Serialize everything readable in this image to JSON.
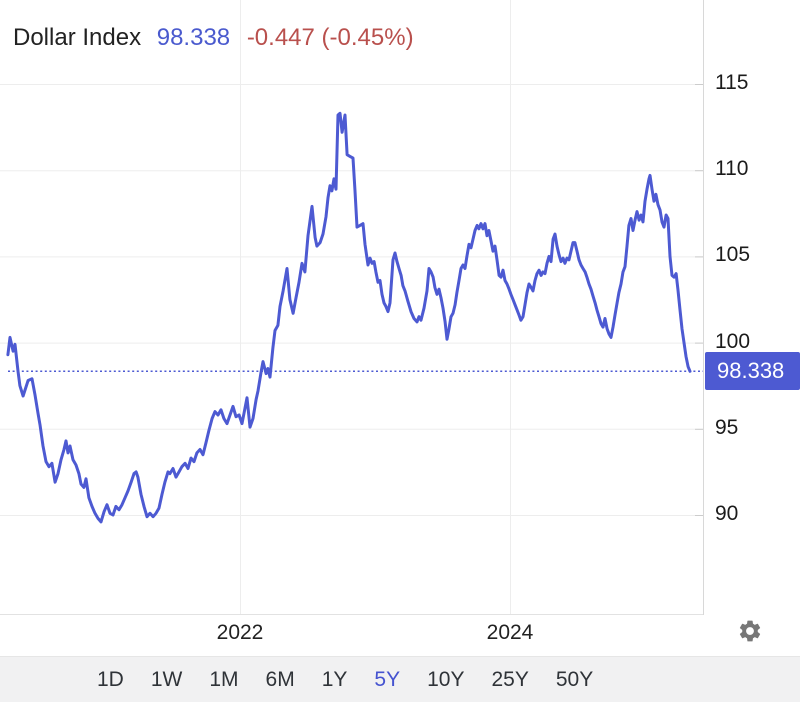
{
  "header": {
    "title": "Dollar Index",
    "last_price": "98.338",
    "change_text": "-0.447 (-0.45%)"
  },
  "colors": {
    "accent_blue": "#4d5ad2",
    "header_price_blue": "#4a5ace",
    "change_red": "#b9504d",
    "gridline": "#ededed",
    "axis_line": "#d8d8d8",
    "tick_mark": "#cccccc",
    "bottom_border": "#e2e2e2",
    "toolbar_bg": "#f1f1f2",
    "text_dark": "#222222",
    "badge_bg": "#4d5ad2",
    "badge_text": "#ffffff",
    "gear_gray": "#777777"
  },
  "chart_data": {
    "type": "line",
    "title": "Dollar Index",
    "series_name": "Dollar Index",
    "x_unit": "decimal_year",
    "grid": true,
    "legend": "none",
    "y_axis_side": "right",
    "xlim": [
      2020.22,
      2025.45
    ],
    "ylim": [
      84.2,
      119.9
    ],
    "x_ticks": [
      {
        "label": "2022",
        "year": 2022
      },
      {
        "label": "2024",
        "year": 2024
      }
    ],
    "y_ticks": [
      115,
      110,
      105,
      100,
      95,
      90
    ],
    "current_value": 98.338,
    "current_label": "98.338",
    "points": [
      [
        2020.281,
        99.3
      ],
      [
        2020.296,
        100.3
      ],
      [
        2020.319,
        99.5
      ],
      [
        2020.333,
        99.9
      ],
      [
        2020.356,
        98.3
      ],
      [
        2020.37,
        97.5
      ],
      [
        2020.393,
        96.9
      ],
      [
        2020.43,
        97.8
      ],
      [
        2020.459,
        97.9
      ],
      [
        2020.481,
        97.0
      ],
      [
        2020.504,
        95.9
      ],
      [
        2020.519,
        95.2
      ],
      [
        2020.541,
        94.0
      ],
      [
        2020.563,
        93.1
      ],
      [
        2020.585,
        92.8
      ],
      [
        2020.607,
        93.0
      ],
      [
        2020.63,
        91.9
      ],
      [
        2020.652,
        92.4
      ],
      [
        2020.674,
        93.2
      ],
      [
        2020.696,
        93.8
      ],
      [
        2020.711,
        94.3
      ],
      [
        2020.726,
        93.6
      ],
      [
        2020.741,
        94.0
      ],
      [
        2020.763,
        93.2
      ],
      [
        2020.785,
        92.9
      ],
      [
        2020.807,
        92.4
      ],
      [
        2020.822,
        91.8
      ],
      [
        2020.844,
        91.6
      ],
      [
        2020.859,
        92.1
      ],
      [
        2020.881,
        91.0
      ],
      [
        2020.904,
        90.5
      ],
      [
        2020.926,
        90.1
      ],
      [
        2020.948,
        89.8
      ],
      [
        2020.97,
        89.6
      ],
      [
        2020.993,
        90.2
      ],
      [
        2021.015,
        90.6
      ],
      [
        2021.037,
        90.1
      ],
      [
        2021.059,
        90.0
      ],
      [
        2021.081,
        90.5
      ],
      [
        2021.104,
        90.3
      ],
      [
        2021.126,
        90.6
      ],
      [
        2021.148,
        91.0
      ],
      [
        2021.17,
        91.4
      ],
      [
        2021.193,
        91.9
      ],
      [
        2021.215,
        92.4
      ],
      [
        2021.23,
        92.5
      ],
      [
        2021.244,
        92.2
      ],
      [
        2021.267,
        91.2
      ],
      [
        2021.289,
        90.5
      ],
      [
        2021.311,
        89.9
      ],
      [
        2021.333,
        90.1
      ],
      [
        2021.356,
        89.9
      ],
      [
        2021.378,
        90.1
      ],
      [
        2021.4,
        90.4
      ],
      [
        2021.422,
        91.2
      ],
      [
        2021.444,
        91.9
      ],
      [
        2021.467,
        92.5
      ],
      [
        2021.481,
        92.4
      ],
      [
        2021.504,
        92.7
      ],
      [
        2021.526,
        92.2
      ],
      [
        2021.548,
        92.5
      ],
      [
        2021.57,
        92.8
      ],
      [
        2021.593,
        93.0
      ],
      [
        2021.615,
        92.7
      ],
      [
        2021.637,
        93.3
      ],
      [
        2021.659,
        93.1
      ],
      [
        2021.681,
        93.6
      ],
      [
        2021.704,
        93.8
      ],
      [
        2021.726,
        93.5
      ],
      [
        2021.748,
        94.2
      ],
      [
        2021.77,
        94.9
      ],
      [
        2021.793,
        95.6
      ],
      [
        2021.815,
        96.0
      ],
      [
        2021.837,
        95.8
      ],
      [
        2021.859,
        96.1
      ],
      [
        2021.881,
        95.6
      ],
      [
        2021.904,
        95.3
      ],
      [
        2021.926,
        95.8
      ],
      [
        2021.948,
        96.3
      ],
      [
        2021.97,
        95.7
      ],
      [
        2021.993,
        95.8
      ],
      [
        2022.015,
        95.3
      ],
      [
        2022.037,
        96.2
      ],
      [
        2022.052,
        96.8
      ],
      [
        2022.074,
        95.1
      ],
      [
        2022.096,
        95.6
      ],
      [
        2022.119,
        96.7
      ],
      [
        2022.133,
        97.2
      ],
      [
        2022.156,
        98.3
      ],
      [
        2022.17,
        98.9
      ],
      [
        2022.193,
        98.2
      ],
      [
        2022.207,
        98.5
      ],
      [
        2022.222,
        98.0
      ],
      [
        2022.244,
        99.7
      ],
      [
        2022.259,
        100.7
      ],
      [
        2022.281,
        101.0
      ],
      [
        2022.296,
        102.1
      ],
      [
        2022.319,
        103.0
      ],
      [
        2022.348,
        104.3
      ],
      [
        2022.37,
        102.5
      ],
      [
        2022.393,
        101.7
      ],
      [
        2022.415,
        102.6
      ],
      [
        2022.437,
        103.5
      ],
      [
        2022.459,
        104.6
      ],
      [
        2022.481,
        104.1
      ],
      [
        2022.504,
        106.2
      ],
      [
        2022.533,
        107.9
      ],
      [
        2022.556,
        106.1
      ],
      [
        2022.57,
        105.6
      ],
      [
        2022.593,
        105.8
      ],
      [
        2022.615,
        106.3
      ],
      [
        2022.637,
        107.3
      ],
      [
        2022.652,
        108.4
      ],
      [
        2022.667,
        109.1
      ],
      [
        2022.681,
        108.8
      ],
      [
        2022.696,
        109.5
      ],
      [
        2022.711,
        108.9
      ],
      [
        2022.726,
        113.2
      ],
      [
        2022.741,
        113.3
      ],
      [
        2022.756,
        112.2
      ],
      [
        2022.778,
        113.2
      ],
      [
        2022.793,
        110.9
      ],
      [
        2022.815,
        110.8
      ],
      [
        2022.837,
        110.7
      ],
      [
        2022.852,
        108.8
      ],
      [
        2022.867,
        106.7
      ],
      [
        2022.889,
        106.8
      ],
      [
        2022.911,
        106.9
      ],
      [
        2022.926,
        105.7
      ],
      [
        2022.948,
        104.5
      ],
      [
        2022.963,
        104.9
      ],
      [
        2022.978,
        104.6
      ],
      [
        2022.993,
        104.7
      ],
      [
        2023.007,
        104.1
      ],
      [
        2023.022,
        103.5
      ],
      [
        2023.037,
        103.6
      ],
      [
        2023.052,
        102.8
      ],
      [
        2023.067,
        102.3
      ],
      [
        2023.081,
        102.1
      ],
      [
        2023.096,
        101.8
      ],
      [
        2023.111,
        102.3
      ],
      [
        2023.133,
        104.8
      ],
      [
        2023.148,
        105.2
      ],
      [
        2023.163,
        104.7
      ],
      [
        2023.178,
        104.3
      ],
      [
        2023.193,
        103.9
      ],
      [
        2023.207,
        103.3
      ],
      [
        2023.222,
        103.0
      ],
      [
        2023.244,
        102.4
      ],
      [
        2023.267,
        101.8
      ],
      [
        2023.289,
        101.4
      ],
      [
        2023.311,
        101.2
      ],
      [
        2023.326,
        101.5
      ],
      [
        2023.341,
        101.3
      ],
      [
        2023.363,
        102.0
      ],
      [
        2023.385,
        103.0
      ],
      [
        2023.4,
        104.3
      ],
      [
        2023.415,
        104.1
      ],
      [
        2023.43,
        103.8
      ],
      [
        2023.444,
        103.2
      ],
      [
        2023.459,
        102.8
      ],
      [
        2023.474,
        103.1
      ],
      [
        2023.489,
        102.6
      ],
      [
        2023.504,
        102.0
      ],
      [
        2023.519,
        101.2
      ],
      [
        2023.533,
        100.2
      ],
      [
        2023.548,
        100.8
      ],
      [
        2023.563,
        101.5
      ],
      [
        2023.578,
        101.7
      ],
      [
        2023.593,
        102.2
      ],
      [
        2023.607,
        102.9
      ],
      [
        2023.622,
        103.6
      ],
      [
        2023.637,
        104.3
      ],
      [
        2023.652,
        104.5
      ],
      [
        2023.667,
        104.3
      ],
      [
        2023.681,
        105.0
      ],
      [
        2023.696,
        105.7
      ],
      [
        2023.711,
        105.5
      ],
      [
        2023.726,
        106.0
      ],
      [
        2023.741,
        106.5
      ],
      [
        2023.756,
        106.8
      ],
      [
        2023.77,
        106.6
      ],
      [
        2023.785,
        106.9
      ],
      [
        2023.8,
        106.6
      ],
      [
        2023.815,
        106.9
      ],
      [
        2023.83,
        106.2
      ],
      [
        2023.844,
        106.5
      ],
      [
        2023.859,
        105.9
      ],
      [
        2023.874,
        105.3
      ],
      [
        2023.889,
        105.6
      ],
      [
        2023.904,
        104.8
      ],
      [
        2023.919,
        103.9
      ],
      [
        2023.933,
        103.8
      ],
      [
        2023.948,
        104.2
      ],
      [
        2023.963,
        103.6
      ],
      [
        2023.978,
        103.4
      ],
      [
        2023.993,
        103.1
      ],
      [
        2024.007,
        102.8
      ],
      [
        2024.022,
        102.5
      ],
      [
        2024.037,
        102.2
      ],
      [
        2024.052,
        101.9
      ],
      [
        2024.067,
        101.6
      ],
      [
        2024.081,
        101.3
      ],
      [
        2024.096,
        101.5
      ],
      [
        2024.111,
        102.2
      ],
      [
        2024.126,
        102.9
      ],
      [
        2024.141,
        103.4
      ],
      [
        2024.156,
        103.2
      ],
      [
        2024.17,
        103.0
      ],
      [
        2024.185,
        103.6
      ],
      [
        2024.2,
        104.0
      ],
      [
        2024.215,
        104.2
      ],
      [
        2024.23,
        103.9
      ],
      [
        2024.244,
        104.1
      ],
      [
        2024.259,
        104.0
      ],
      [
        2024.274,
        104.6
      ],
      [
        2024.289,
        105.0
      ],
      [
        2024.304,
        104.7
      ],
      [
        2024.319,
        106.0
      ],
      [
        2024.333,
        106.3
      ],
      [
        2024.348,
        105.6
      ],
      [
        2024.363,
        105.1
      ],
      [
        2024.378,
        104.7
      ],
      [
        2024.393,
        104.9
      ],
      [
        2024.407,
        104.6
      ],
      [
        2024.422,
        104.9
      ],
      [
        2024.437,
        104.8
      ],
      [
        2024.452,
        105.3
      ],
      [
        2024.467,
        105.8
      ],
      [
        2024.481,
        105.8
      ],
      [
        2024.496,
        105.3
      ],
      [
        2024.511,
        104.8
      ],
      [
        2024.526,
        104.5
      ],
      [
        2024.541,
        104.3
      ],
      [
        2024.556,
        104.1
      ],
      [
        2024.57,
        103.8
      ],
      [
        2024.585,
        103.4
      ],
      [
        2024.6,
        103.1
      ],
      [
        2024.615,
        102.7
      ],
      [
        2024.63,
        102.3
      ],
      [
        2024.644,
        101.9
      ],
      [
        2024.659,
        101.5
      ],
      [
        2024.674,
        101.1
      ],
      [
        2024.689,
        100.9
      ],
      [
        2024.704,
        101.4
      ],
      [
        2024.719,
        100.8
      ],
      [
        2024.733,
        100.5
      ],
      [
        2024.748,
        100.3
      ],
      [
        2024.763,
        100.9
      ],
      [
        2024.778,
        101.6
      ],
      [
        2024.793,
        102.3
      ],
      [
        2024.807,
        102.9
      ],
      [
        2024.822,
        103.4
      ],
      [
        2024.837,
        104.1
      ],
      [
        2024.852,
        104.4
      ],
      [
        2024.867,
        105.6
      ],
      [
        2024.881,
        106.8
      ],
      [
        2024.896,
        107.2
      ],
      [
        2024.911,
        106.5
      ],
      [
        2024.926,
        107.1
      ],
      [
        2024.941,
        107.6
      ],
      [
        2024.956,
        107.1
      ],
      [
        2024.97,
        107.4
      ],
      [
        2024.985,
        107.0
      ],
      [
        2025.0,
        108.2
      ],
      [
        2025.015,
        108.9
      ],
      [
        2025.03,
        109.5
      ],
      [
        2025.037,
        109.7
      ],
      [
        2025.052,
        108.9
      ],
      [
        2025.067,
        108.2
      ],
      [
        2025.081,
        108.6
      ],
      [
        2025.096,
        108.0
      ],
      [
        2025.111,
        107.7
      ],
      [
        2025.126,
        107.0
      ],
      [
        2025.141,
        106.7
      ],
      [
        2025.156,
        107.4
      ],
      [
        2025.17,
        107.2
      ],
      [
        2025.185,
        105.0
      ],
      [
        2025.2,
        103.9
      ],
      [
        2025.215,
        103.8
      ],
      [
        2025.23,
        104.0
      ],
      [
        2025.244,
        103.1
      ],
      [
        2025.259,
        101.9
      ],
      [
        2025.274,
        100.8
      ],
      [
        2025.289,
        100.0
      ],
      [
        2025.304,
        99.2
      ],
      [
        2025.319,
        98.6
      ],
      [
        2025.333,
        98.338
      ]
    ]
  },
  "toolbar": {
    "buttons": [
      {
        "label": "1D",
        "active": false
      },
      {
        "label": "1W",
        "active": false
      },
      {
        "label": "1M",
        "active": false
      },
      {
        "label": "6M",
        "active": false
      },
      {
        "label": "1Y",
        "active": false
      },
      {
        "label": "5Y",
        "active": true
      },
      {
        "label": "10Y",
        "active": false
      },
      {
        "label": "25Y",
        "active": false
      },
      {
        "label": "50Y",
        "active": false
      }
    ]
  },
  "settings": {
    "icon": "gear-icon"
  }
}
